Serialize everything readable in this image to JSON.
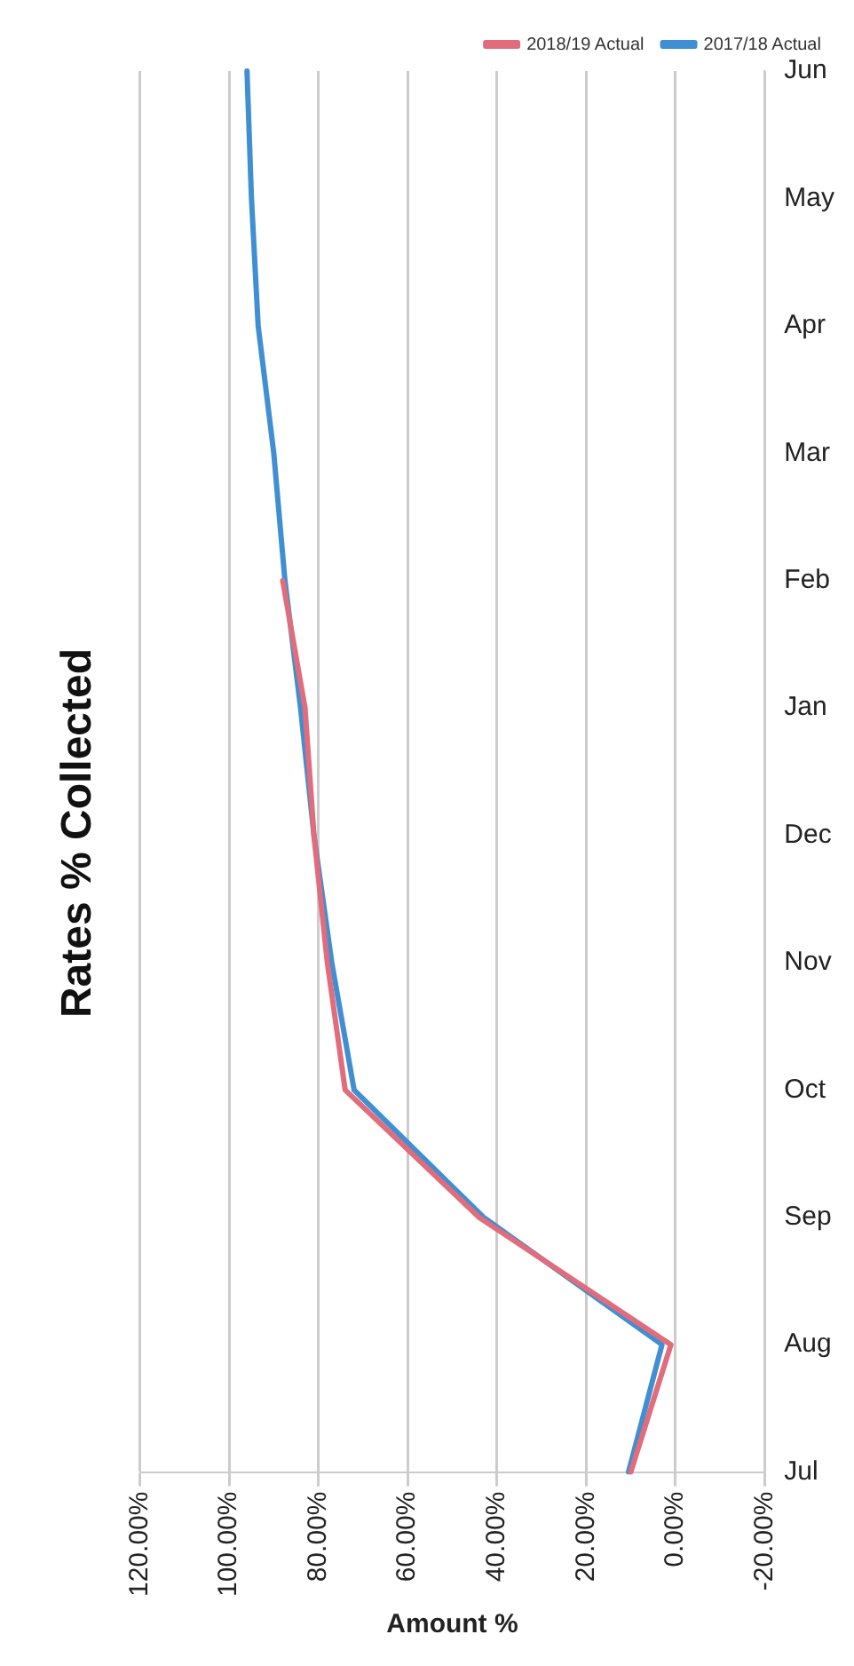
{
  "chart_data": {
    "type": "line",
    "orientation": "horizontal",
    "title": "Rates % Collected",
    "xlabel": "Amount %",
    "categories": [
      "Jun",
      "May",
      "Apr",
      "Mar",
      "Feb",
      "Jan",
      "Dec",
      "Nov",
      "Oct",
      "Sep",
      "Aug",
      "Jul"
    ],
    "series": [
      {
        "name": "2018/19 Actual",
        "color": "#e06c7c",
        "values": [
          null,
          null,
          null,
          null,
          88,
          83,
          81,
          78,
          74,
          44,
          1,
          10
        ]
      },
      {
        "name": "2017/18 Actual",
        "color": "#3f8fd2",
        "values": [
          96,
          95,
          93.5,
          90,
          87.5,
          84,
          81,
          77,
          72,
          43,
          3,
          10.5
        ]
      }
    ],
    "xlim": [
      120,
      -20
    ],
    "xticks": [
      {
        "value": 120,
        "label": "120.00%"
      },
      {
        "value": 100,
        "label": "100.00%"
      },
      {
        "value": 80,
        "label": "80.00%"
      },
      {
        "value": 60,
        "label": "60.00%"
      },
      {
        "value": 40,
        "label": "40.00%"
      },
      {
        "value": 20,
        "label": "20.00%"
      },
      {
        "value": 0,
        "label": "0.00%"
      },
      {
        "value": -20,
        "label": "-20.00%"
      }
    ],
    "grid": "x",
    "legend": "top right",
    "marker": "none",
    "line_style": "solid"
  }
}
